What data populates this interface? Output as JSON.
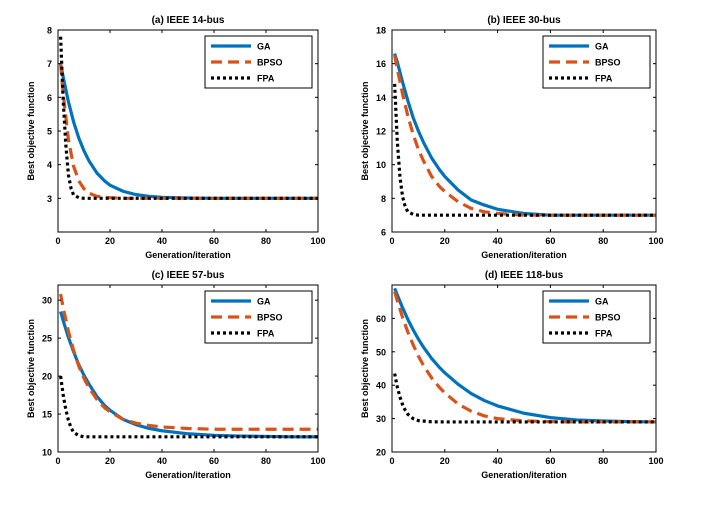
{
  "chart_data": [
    {
      "type": "line",
      "title": "(a) IEEE 14-bus",
      "xlabel": "Generation/iteration",
      "ylabel": "Best objective function",
      "xlim": [
        0,
        100
      ],
      "ylim": [
        2,
        8
      ],
      "xticks": [
        0,
        20,
        40,
        60,
        80,
        100
      ],
      "yticks": [
        3,
        4,
        5,
        6,
        7,
        8
      ],
      "legend_position": "top-right",
      "series": [
        {
          "name": "GA",
          "color": "#0072BD",
          "style": "solid",
          "x": [
            1,
            2,
            4,
            6,
            8,
            10,
            12,
            15,
            18,
            20,
            25,
            30,
            35,
            40,
            50,
            60,
            70,
            80,
            90,
            100
          ],
          "values": [
            7.0,
            6.6,
            5.87,
            5.27,
            4.79,
            4.41,
            4.1,
            3.75,
            3.51,
            3.39,
            3.21,
            3.11,
            3.06,
            3.03,
            3.01,
            3.0,
            3.0,
            3.0,
            3.0,
            3.0
          ]
        },
        {
          "name": "BPSO",
          "color": "#D95319",
          "style": "dashed",
          "x": [
            1,
            2,
            4,
            6,
            8,
            10,
            12,
            15,
            18,
            20,
            25,
            30,
            40,
            60,
            80,
            100
          ],
          "values": [
            7.0,
            6.1,
            4.75,
            3.95,
            3.52,
            3.28,
            3.15,
            3.06,
            3.03,
            3.02,
            3.0,
            3.0,
            3.0,
            3.0,
            3.0,
            3.0
          ]
        },
        {
          "name": "FPA",
          "color": "#000000",
          "style": "dotted",
          "x": [
            1,
            2,
            3,
            4,
            5,
            6,
            8,
            10,
            15,
            20,
            40,
            60,
            80,
            100
          ],
          "values": [
            7.8,
            5.9,
            4.6,
            3.7,
            3.3,
            3.1,
            3.02,
            3.0,
            3.0,
            3.0,
            3.0,
            3.0,
            3.0,
            3.0
          ]
        }
      ]
    },
    {
      "type": "line",
      "title": "(b) IEEE 30-bus",
      "xlabel": "Generation/iteration",
      "ylabel": "Best objective function",
      "xlim": [
        0,
        100
      ],
      "ylim": [
        6,
        18
      ],
      "xticks": [
        0,
        20,
        40,
        60,
        80,
        100
      ],
      "yticks": [
        6,
        8,
        10,
        12,
        14,
        16,
        18
      ],
      "legend_position": "top-right",
      "series": [
        {
          "name": "GA",
          "color": "#0072BD",
          "style": "solid",
          "x": [
            1,
            2,
            4,
            6,
            8,
            10,
            12,
            15,
            18,
            20,
            25,
            30,
            35,
            40,
            50,
            60,
            70,
            80,
            90,
            100
          ],
          "values": [
            16.6,
            16.1,
            14.9,
            13.8,
            12.8,
            12.0,
            11.3,
            10.4,
            9.7,
            9.3,
            8.5,
            7.9,
            7.6,
            7.35,
            7.1,
            7.0,
            7.0,
            7.0,
            7.0,
            7.0
          ]
        },
        {
          "name": "BPSO",
          "color": "#D95319",
          "style": "dashed",
          "x": [
            1,
            2,
            4,
            6,
            8,
            10,
            12,
            15,
            18,
            20,
            25,
            30,
            35,
            40,
            50,
            60,
            70,
            80,
            90,
            100
          ],
          "values": [
            16.5,
            15.7,
            14.2,
            12.9,
            11.8,
            10.9,
            10.2,
            9.3,
            8.7,
            8.4,
            7.8,
            7.4,
            7.2,
            7.1,
            7.0,
            7.0,
            7.0,
            7.0,
            7.0,
            7.0
          ]
        },
        {
          "name": "FPA",
          "color": "#000000",
          "style": "dotted",
          "x": [
            1,
            2,
            3,
            4,
            5,
            6,
            8,
            10,
            15,
            20,
            40,
            60,
            80,
            100
          ],
          "values": [
            14.8,
            11.4,
            9.3,
            8.1,
            7.5,
            7.2,
            7.05,
            7.0,
            7.0,
            7.0,
            7.0,
            7.0,
            7.0,
            7.0
          ]
        }
      ]
    },
    {
      "type": "line",
      "title": "(c) IEEE 57-bus",
      "xlabel": "Generation/iteration",
      "ylabel": "Best objective function",
      "xlim": [
        0,
        100
      ],
      "ylim": [
        10,
        32
      ],
      "xticks": [
        0,
        20,
        40,
        60,
        80,
        100
      ],
      "yticks": [
        10,
        15,
        20,
        25,
        30
      ],
      "legend_position": "top-right",
      "series": [
        {
          "name": "GA",
          "color": "#0072BD",
          "style": "solid",
          "x": [
            1,
            2,
            4,
            6,
            8,
            10,
            12,
            15,
            18,
            20,
            25,
            30,
            35,
            40,
            50,
            60,
            70,
            80,
            90,
            100
          ],
          "values": [
            28.5,
            27.3,
            25.1,
            23.2,
            21.5,
            20.1,
            18.9,
            17.3,
            16.1,
            15.5,
            14.3,
            13.6,
            13.1,
            12.8,
            12.4,
            12.2,
            12.1,
            12.05,
            12.0,
            12.0
          ]
        },
        {
          "name": "BPSO",
          "color": "#D95319",
          "style": "dashed",
          "x": [
            1,
            2,
            4,
            6,
            8,
            10,
            12,
            15,
            18,
            20,
            25,
            30,
            35,
            40,
            50,
            60,
            70,
            80,
            90,
            100
          ],
          "values": [
            30.8,
            29.0,
            25.9,
            23.4,
            21.3,
            19.7,
            18.4,
            16.9,
            15.8,
            15.3,
            14.3,
            13.8,
            13.5,
            13.3,
            13.1,
            13.0,
            13.0,
            13.0,
            13.0,
            13.0
          ]
        },
        {
          "name": "FPA",
          "color": "#000000",
          "style": "dotted",
          "x": [
            1,
            2,
            3,
            4,
            5,
            6,
            8,
            10,
            15,
            20,
            40,
            60,
            80,
            100
          ],
          "values": [
            20.0,
            17.5,
            15.6,
            14.2,
            13.2,
            12.6,
            12.15,
            12.0,
            12.0,
            12.0,
            12.0,
            12.0,
            12.0,
            12.0
          ]
        }
      ]
    },
    {
      "type": "line",
      "title": "(d) IEEE 118-bus",
      "xlabel": "Generation/iteration",
      "ylabel": "Best objective function",
      "xlim": [
        0,
        100
      ],
      "ylim": [
        20,
        70
      ],
      "xticks": [
        0,
        20,
        40,
        60,
        80,
        100
      ],
      "yticks": [
        20,
        30,
        40,
        50,
        60
      ],
      "legend_position": "top-right",
      "series": [
        {
          "name": "GA",
          "color": "#0072BD",
          "style": "solid",
          "x": [
            1,
            2,
            4,
            6,
            8,
            10,
            12,
            15,
            18,
            20,
            25,
            30,
            35,
            40,
            50,
            60,
            70,
            80,
            90,
            100
          ],
          "values": [
            69.0,
            67.0,
            63.2,
            59.7,
            56.6,
            53.8,
            51.3,
            48.0,
            45.3,
            43.7,
            40.3,
            37.5,
            35.4,
            33.8,
            31.6,
            30.3,
            29.6,
            29.3,
            29.1,
            29.0
          ]
        },
        {
          "name": "BPSO",
          "color": "#D95319",
          "style": "dashed",
          "x": [
            1,
            2,
            4,
            6,
            8,
            10,
            12,
            15,
            18,
            20,
            25,
            30,
            35,
            40,
            50,
            60,
            70,
            80,
            90,
            100
          ],
          "values": [
            68.0,
            65.3,
            60.3,
            55.9,
            52.1,
            48.7,
            45.8,
            42.2,
            39.3,
            37.7,
            34.4,
            32.2,
            30.8,
            30.0,
            29.3,
            29.1,
            29.0,
            29.0,
            29.0,
            29.0
          ]
        },
        {
          "name": "FPA",
          "color": "#000000",
          "style": "dotted",
          "x": [
            1,
            2,
            3,
            4,
            5,
            6,
            8,
            10,
            15,
            20,
            40,
            60,
            80,
            100
          ],
          "values": [
            43.5,
            39.5,
            36.5,
            34.2,
            32.5,
            31.3,
            30.0,
            29.4,
            29.05,
            29.0,
            29.0,
            29.0,
            29.0,
            29.0
          ]
        }
      ]
    }
  ]
}
